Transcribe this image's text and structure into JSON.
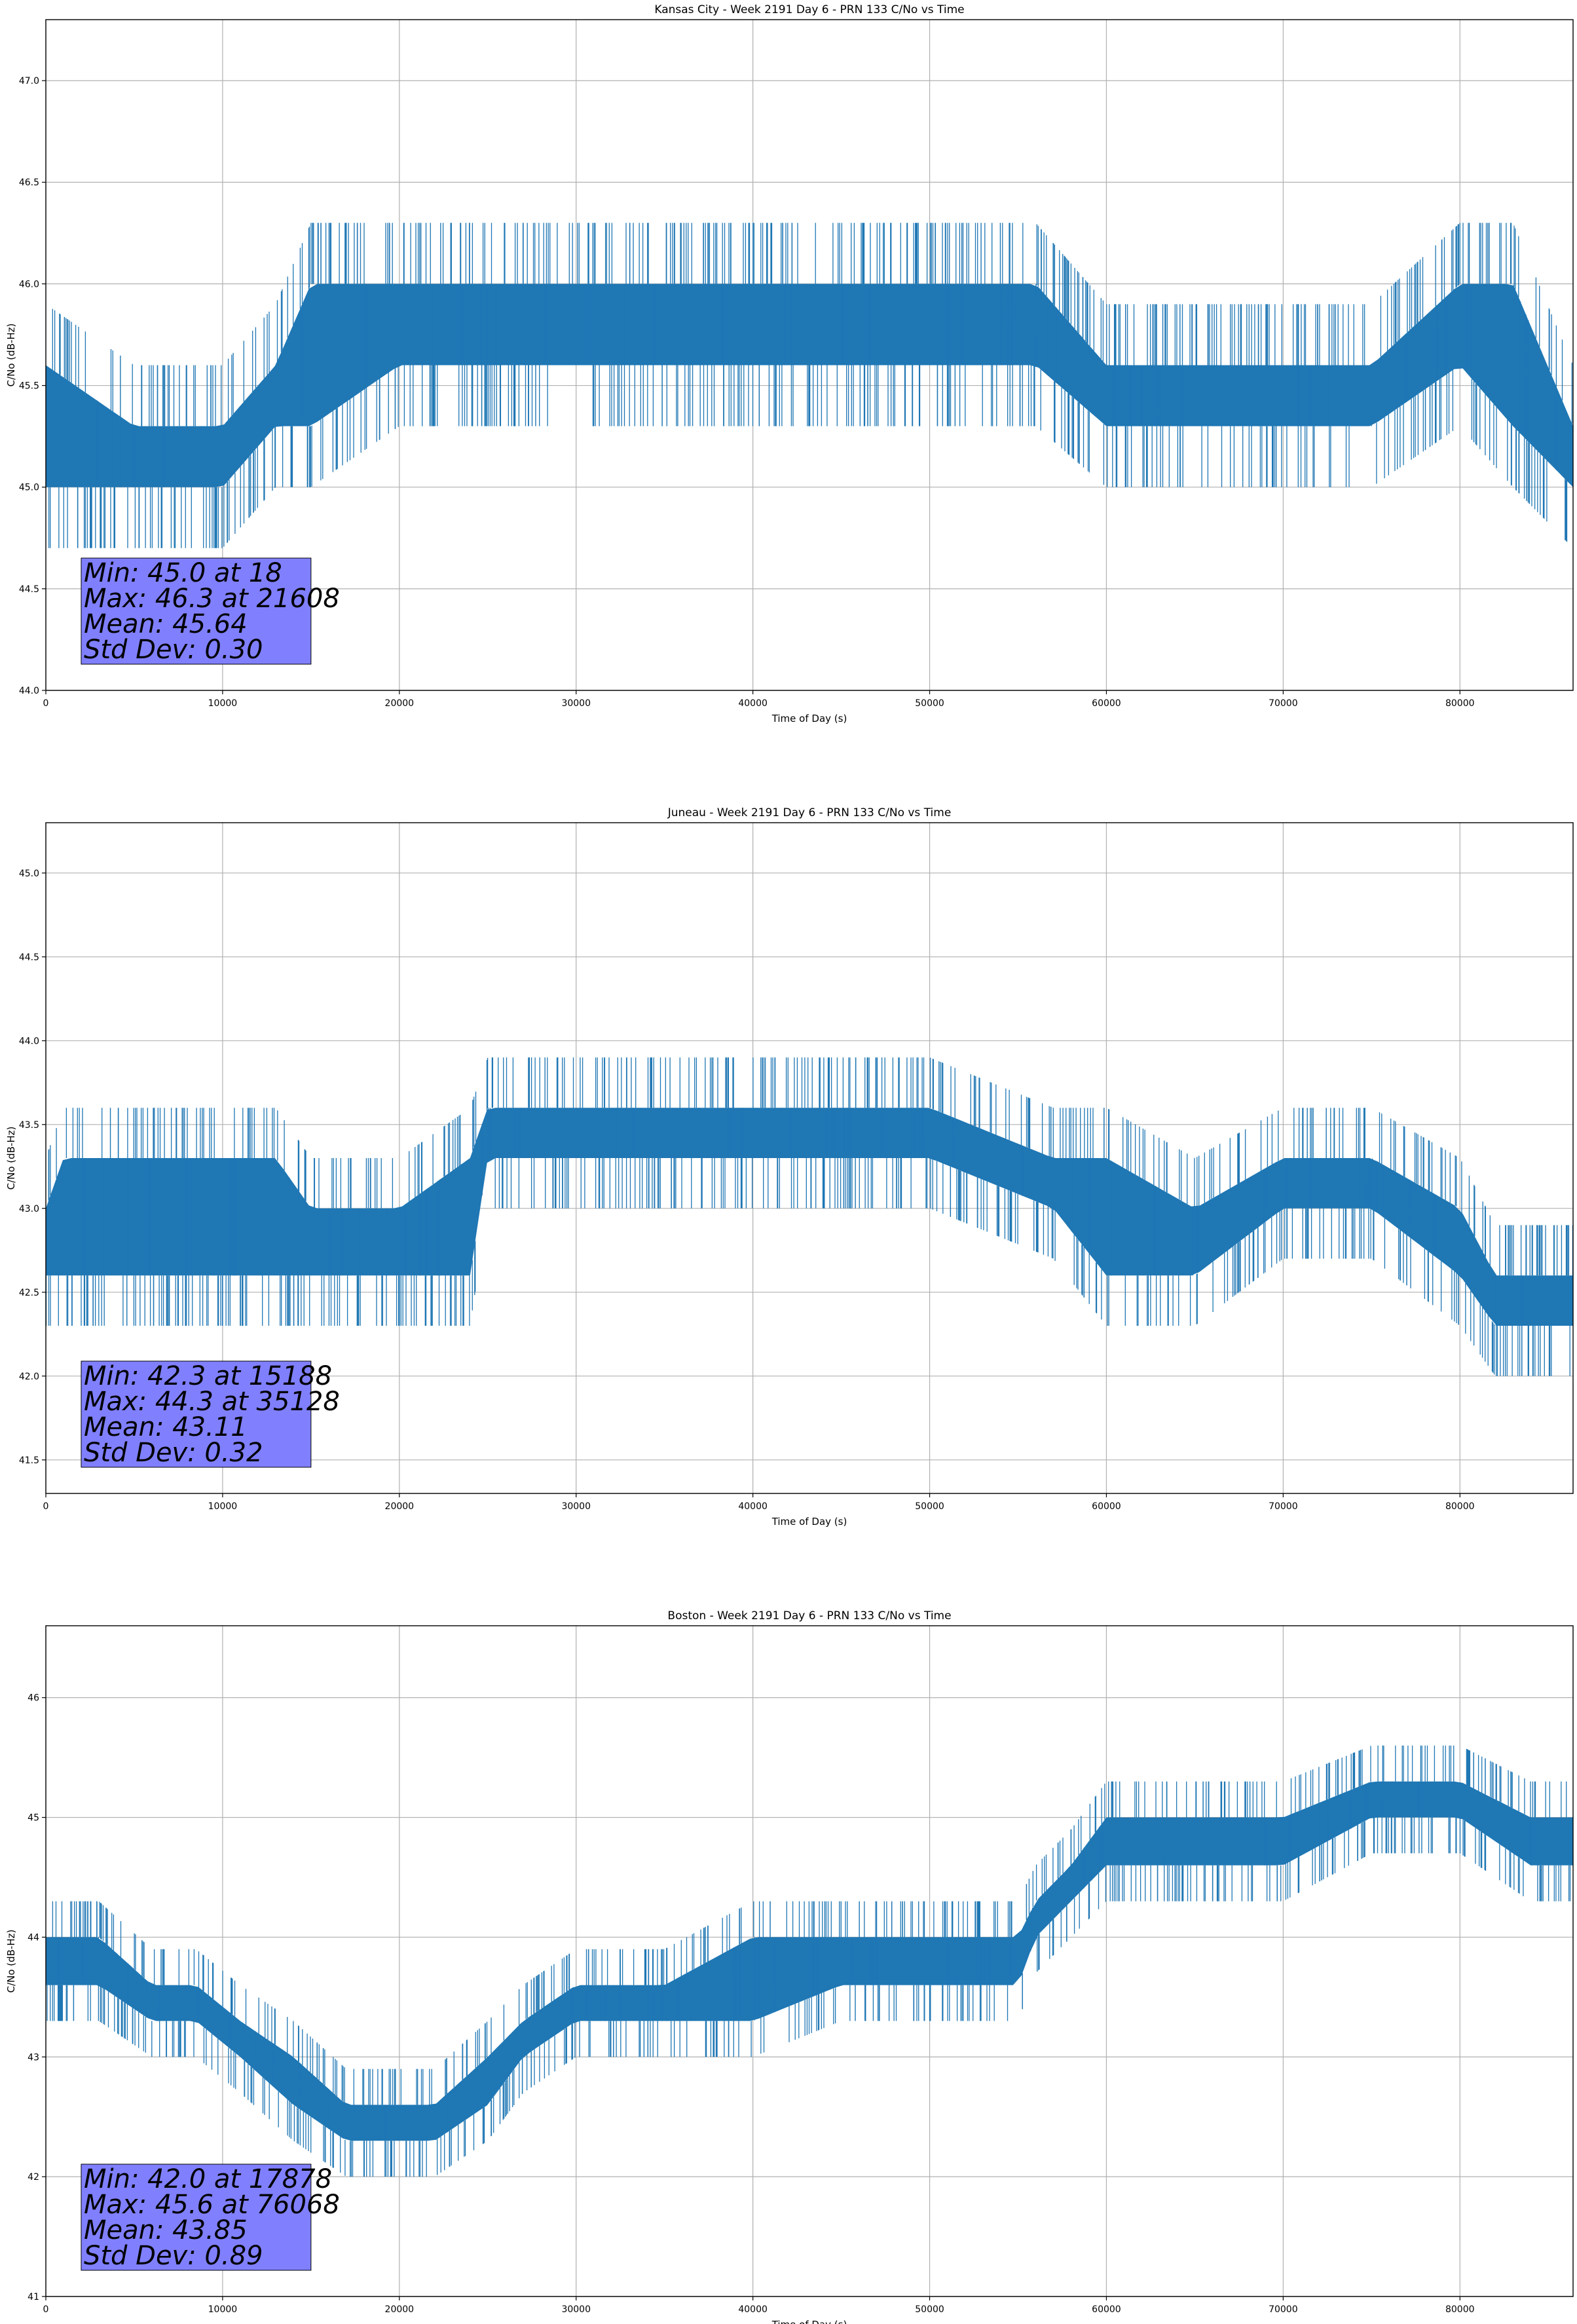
{
  "colors": {
    "series": "#1f77b4",
    "stats_box": "#8080ff",
    "grid": "#b0b0b0"
  },
  "chart_data": [
    {
      "type": "line",
      "title": "Kansas City - Week 2191 Day 6 - PRN 133 C/No vs Time",
      "xlabel": "Time of Day (s)",
      "ylabel": "C/No (dB-Hz)",
      "xlim": [
        0,
        86400
      ],
      "ylim": [
        44.0,
        47.3
      ],
      "xticks": [
        0,
        10000,
        20000,
        30000,
        40000,
        50000,
        60000,
        70000,
        80000
      ],
      "yticks": [
        "44.0",
        "44.5",
        "45.0",
        "45.5",
        "46.0",
        "46.5",
        "47.0"
      ],
      "grid": true,
      "stats": [
        "Min: 45.0 at 18",
        "Max: 46.3 at 21608",
        "Mean: 45.64",
        "Std Dev: 0.30"
      ],
      "series": [
        {
          "x": [
            0,
            5000,
            10000,
            13000,
            15000,
            20000,
            30000,
            40000,
            50000,
            56000,
            60000,
            65000,
            70000,
            75000,
            80000,
            83000,
            86400
          ],
          "y_low": [
            45.0,
            45.0,
            45.0,
            45.3,
            45.3,
            45.6,
            45.6,
            45.6,
            45.6,
            45.6,
            45.3,
            45.3,
            45.3,
            45.3,
            45.6,
            45.3,
            45.0
          ],
          "y_high": [
            45.6,
            45.3,
            45.3,
            45.6,
            46.0,
            46.0,
            46.0,
            46.0,
            46.0,
            46.0,
            45.6,
            45.6,
            45.6,
            45.6,
            46.0,
            46.0,
            45.3
          ]
        }
      ]
    },
    {
      "type": "line",
      "title": "Juneau - Week 2191 Day 6 - PRN 133 C/No vs Time",
      "xlabel": "Time of Day (s)",
      "ylabel": "C/No (dB-Hz)",
      "xlim": [
        0,
        86400
      ],
      "ylim": [
        41.3,
        45.3
      ],
      "xticks": [
        0,
        10000,
        20000,
        30000,
        40000,
        50000,
        60000,
        70000,
        80000
      ],
      "yticks": [
        "41.5",
        "42.0",
        "42.5",
        "43.0",
        "43.5",
        "44.0",
        "44.5",
        "45.0"
      ],
      "grid": true,
      "stats": [
        "Min: 42.3 at 15188",
        "Max: 44.3 at 35128",
        "Mean: 43.11",
        "Std Dev: 0.32"
      ],
      "series": [
        {
          "x": [
            0,
            1000,
            5000,
            10000,
            13000,
            15000,
            20000,
            24000,
            25000,
            30000,
            40000,
            50000,
            57000,
            60000,
            65000,
            70000,
            75000,
            80000,
            82000,
            86400
          ],
          "y_low": [
            42.6,
            42.6,
            42.6,
            42.6,
            42.6,
            42.6,
            42.6,
            42.6,
            43.3,
            43.3,
            43.3,
            43.3,
            43.0,
            42.6,
            42.6,
            43.0,
            43.0,
            42.6,
            42.3,
            42.3
          ],
          "y_high": [
            43.0,
            43.3,
            43.3,
            43.3,
            43.3,
            43.0,
            43.0,
            43.3,
            43.6,
            43.6,
            43.6,
            43.6,
            43.3,
            43.3,
            43.0,
            43.3,
            43.3,
            43.0,
            42.6,
            42.6
          ]
        }
      ]
    },
    {
      "type": "line",
      "title": "Boston - Week 2191 Day 6 - PRN 133 C/No vs Time",
      "xlabel": "Time of Day (s)",
      "ylabel": "C/No (dB-Hz)",
      "xlim": [
        0,
        86400
      ],
      "ylim": [
        41.0,
        46.6
      ],
      "xticks": [
        0,
        10000,
        20000,
        30000,
        40000,
        50000,
        60000,
        70000,
        80000
      ],
      "yticks": [
        "41",
        "42",
        "43",
        "44",
        "45",
        "46"
      ],
      "grid": true,
      "stats": [
        "Min: 42.0 at 17878",
        "Max: 45.6 at 76068",
        "Mean: 43.85",
        "Std Dev: 0.89"
      ],
      "series": [
        {
          "x": [
            0,
            3000,
            6000,
            8500,
            11000,
            14000,
            17000,
            20000,
            22000,
            25000,
            27000,
            30000,
            35000,
            40000,
            45000,
            50000,
            55000,
            56000,
            58000,
            60000,
            65000,
            70000,
            75000,
            80000,
            84000,
            86400
          ],
          "y_low": [
            43.6,
            43.6,
            43.3,
            43.3,
            43.0,
            42.6,
            42.3,
            42.3,
            42.3,
            42.6,
            43.0,
            43.3,
            43.3,
            43.3,
            43.6,
            43.6,
            43.6,
            44.0,
            44.3,
            44.6,
            44.6,
            44.6,
            45.0,
            45.0,
            44.6,
            44.6
          ],
          "y_high": [
            44.0,
            44.0,
            43.6,
            43.6,
            43.3,
            43.0,
            42.6,
            42.6,
            42.6,
            43.0,
            43.3,
            43.6,
            43.6,
            44.0,
            44.0,
            44.0,
            44.0,
            44.3,
            44.6,
            45.0,
            45.0,
            45.0,
            45.3,
            45.3,
            45.0,
            45.0
          ]
        }
      ]
    }
  ]
}
